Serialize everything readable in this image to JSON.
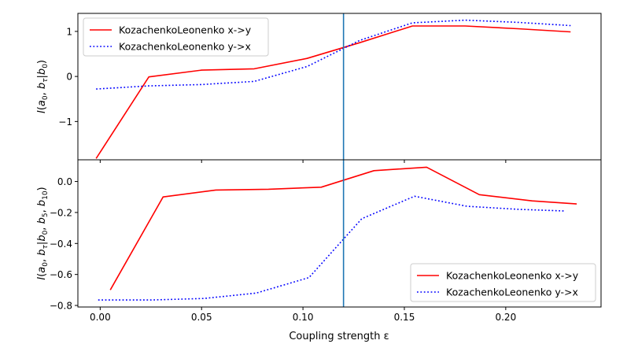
{
  "figure": {
    "xlabel": "Coupling strength ε"
  },
  "chart_data": [
    {
      "type": "line",
      "ylabel": "I(a0, bτ|b0)",
      "xlim": [
        -0.011,
        0.247
      ],
      "ylim": [
        -1.85,
        1.4
      ],
      "x_ticks": [
        0.0,
        0.05,
        0.1,
        0.15,
        0.2
      ],
      "x_tick_labels": [
        "0.00",
        "0.05",
        "0.10",
        "0.15",
        "0.20"
      ],
      "y_ticks": [
        -1,
        0,
        1
      ],
      "y_tick_labels": [
        "−1",
        "0",
        "1"
      ],
      "show_x_ticklabels": false,
      "vline_x": 0.12,
      "vline_color": "#1f77b4",
      "legend_position": "upper-left",
      "series": [
        {
          "name": "KozachenkoLeonenko x->y",
          "color": "#ff0000",
          "style": "solid",
          "x": [
            -0.002,
            0.024,
            0.05,
            0.076,
            0.102,
            0.128,
            0.154,
            0.18,
            0.206,
            0.232
          ],
          "y": [
            -1.82,
            -0.01,
            0.14,
            0.17,
            0.4,
            0.75,
            1.12,
            1.12,
            1.06,
            0.99
          ]
        },
        {
          "name": "KozachenkoLeonenko y->x",
          "color": "#0000ff",
          "style": "dotted",
          "x": [
            -0.002,
            0.024,
            0.05,
            0.076,
            0.102,
            0.128,
            0.154,
            0.18,
            0.206,
            0.232
          ],
          "y": [
            -0.28,
            -0.21,
            -0.18,
            -0.11,
            0.22,
            0.8,
            1.19,
            1.25,
            1.2,
            1.13
          ]
        }
      ]
    },
    {
      "type": "line",
      "ylabel": "I(a0, bτ|b0, b5, b10)",
      "xlim": [
        -0.011,
        0.247
      ],
      "ylim": [
        -0.81,
        0.14
      ],
      "x_ticks": [
        0.0,
        0.05,
        0.1,
        0.15,
        0.2
      ],
      "x_tick_labels": [
        "0.00",
        "0.05",
        "0.10",
        "0.15",
        "0.20"
      ],
      "y_ticks": [
        -0.8,
        -0.6,
        -0.4,
        -0.2,
        0.0
      ],
      "y_tick_labels": [
        "−0.8",
        "−0.6",
        "−0.4",
        "−0.2",
        "0.0"
      ],
      "show_x_ticklabels": true,
      "vline_x": 0.12,
      "vline_color": "#1f77b4",
      "legend_position": "lower-right",
      "series": [
        {
          "name": "KozachenkoLeonenko x->y",
          "color": "#ff0000",
          "style": "solid",
          "x": [
            0.005,
            0.031,
            0.057,
            0.083,
            0.109,
            0.135,
            0.161,
            0.187,
            0.213,
            0.235
          ],
          "y": [
            -0.7,
            -0.1,
            -0.055,
            -0.05,
            -0.037,
            0.07,
            0.092,
            -0.085,
            -0.125,
            -0.145
          ]
        },
        {
          "name": "KozachenkoLeonenko y->x",
          "color": "#0000ff",
          "style": "dotted",
          "x": [
            -0.001,
            0.025,
            0.051,
            0.077,
            0.103,
            0.129,
            0.155,
            0.181,
            0.207,
            0.229
          ],
          "y": [
            -0.765,
            -0.765,
            -0.755,
            -0.72,
            -0.62,
            -0.24,
            -0.095,
            -0.16,
            -0.18,
            -0.19
          ]
        }
      ]
    }
  ]
}
